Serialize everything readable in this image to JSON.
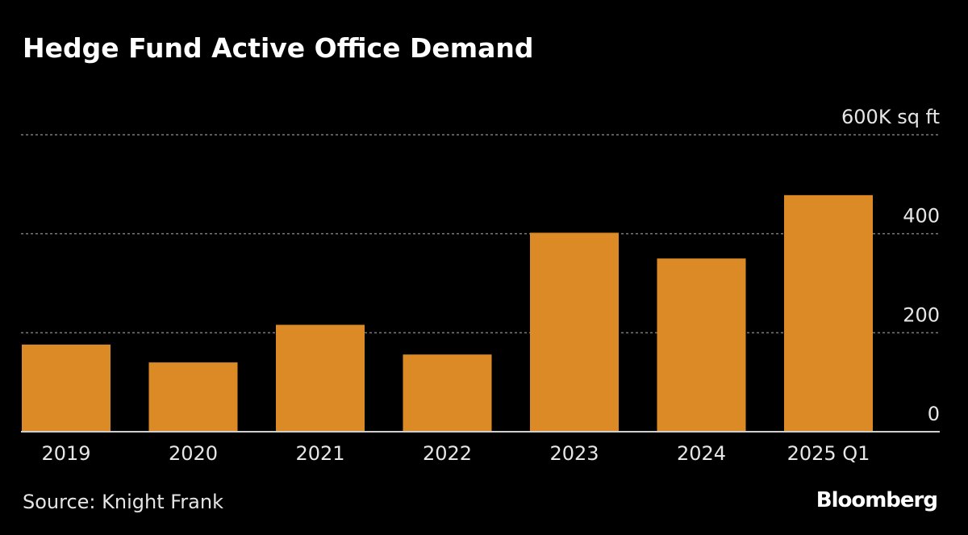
{
  "chart_data": {
    "type": "bar",
    "title": "Hedge Fund Active Office Demand",
    "categories": [
      "2019",
      "2020",
      "2021",
      "2022",
      "2023",
      "2024",
      "2025 Q1"
    ],
    "values": [
      176,
      140,
      216,
      156,
      402,
      350,
      478
    ],
    "xlabel": "",
    "ylabel": "",
    "ylim": [
      0,
      600
    ],
    "yticks": [
      0,
      200,
      400,
      600
    ],
    "ytick_labels": [
      "0",
      "200",
      "400",
      "600K sq ft"
    ],
    "grid": true,
    "bar_color": "#dc8a26",
    "gridline_color": "#7a7a7a",
    "baseline_color": "#cfcfcf",
    "text_color": "#e6e6e6"
  },
  "footer": {
    "source": "Source: Knight Frank",
    "brand": "Bloomberg"
  }
}
